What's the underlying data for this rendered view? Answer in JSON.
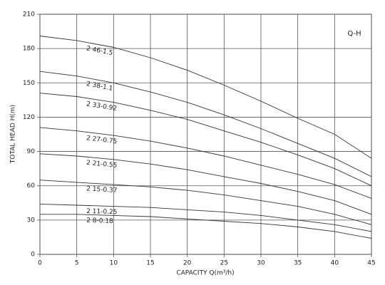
{
  "chart_data": {
    "type": "line",
    "title": "Q-H",
    "x_label": "CAPACITY Q(m³/h)",
    "y_label": "TOTAL HEAD H(m)",
    "x": [
      0,
      5,
      10,
      15,
      20,
      25,
      30,
      35,
      40,
      45
    ],
    "series": [
      {
        "name": "2 46-1.5",
        "color": "#333333",
        "values": [
          191,
          187,
          181,
          172,
          161,
          148,
          134,
          119,
          105,
          84
        ]
      },
      {
        "name": "2 38-1.1",
        "color": "#333333",
        "values": [
          160,
          156,
          150,
          142,
          133,
          122,
          110,
          97,
          84,
          68
        ]
      },
      {
        "name": "2 33-0.92",
        "color": "#333333",
        "values": [
          141,
          138,
          133,
          126,
          118,
          108,
          98,
          87,
          75,
          60
        ]
      },
      {
        "name": "2 27-0.75",
        "color": "#333333",
        "values": [
          111,
          108,
          104,
          99,
          93,
          86,
          78,
          70,
          61,
          49
        ]
      },
      {
        "name": "2 21-0.55",
        "color": "#333333",
        "values": [
          88,
          86,
          83,
          79,
          74,
          68,
          62,
          55,
          47,
          35
        ]
      },
      {
        "name": "2 15-0.37",
        "color": "#333333",
        "values": [
          65,
          63,
          61,
          59,
          56,
          52,
          47,
          42,
          35,
          26
        ]
      },
      {
        "name": "2 11-0.25",
        "color": "#333333",
        "values": [
          44,
          43,
          42,
          41,
          39,
          37,
          34,
          30,
          26,
          20
        ]
      },
      {
        "name": "2 8-0.18",
        "color": "#333333",
        "values": [
          35,
          35,
          34,
          33,
          31,
          29,
          27,
          24,
          20,
          14
        ]
      }
    ],
    "xlim": [
      0,
      45
    ],
    "xticks": [
      0,
      5,
      10,
      15,
      20,
      25,
      30,
      35,
      40,
      45
    ],
    "ylim": [
      0,
      210
    ],
    "yticks": [
      0,
      30,
      60,
      90,
      120,
      150,
      180,
      210
    ],
    "grid": true
  }
}
